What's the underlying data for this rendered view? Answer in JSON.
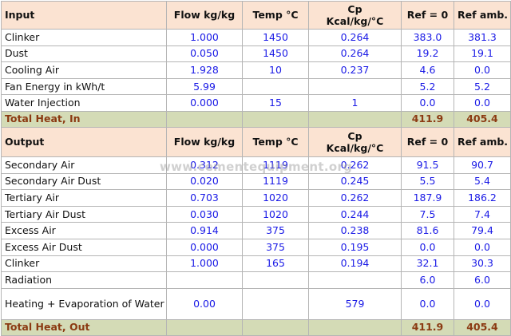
{
  "input_header": {
    "label": "Input",
    "flow": "Flow kg/kg",
    "temp": "Temp °C",
    "cp_line1": "Cp",
    "cp_line2": "Kcal/kg/°C",
    "ref0": "Ref = 0",
    "refamb": "Ref amb."
  },
  "input_rows": [
    {
      "label": "Clinker",
      "flow": "1.000",
      "temp": "1450",
      "cp": "0.264",
      "ref0": "383.0",
      "refamb": "381.3"
    },
    {
      "label": "Dust",
      "flow": "0.050",
      "temp": "1450",
      "cp": "0.264",
      "ref0": "19.2",
      "refamb": "19.1"
    },
    {
      "label": "Cooling Air",
      "flow": "1.928",
      "temp": "10",
      "cp": "0.237",
      "ref0": "4.6",
      "refamb": "0.0"
    },
    {
      "label": "Fan Energy in kWh/t",
      "flow": "5.99",
      "temp": "",
      "cp": "",
      "ref0": "5.2",
      "refamb": "5.2"
    },
    {
      "label": "Water Injection",
      "flow": "0.000",
      "temp": "15",
      "cp": "1",
      "ref0": "0.0",
      "refamb": "0.0"
    }
  ],
  "input_total": {
    "label": "Total Heat, In",
    "ref0": "411.9",
    "refamb": "405.4"
  },
  "output_header": {
    "label": "Output",
    "flow": "Flow kg/kg",
    "temp": "Temp °C",
    "cp_line1": "Cp",
    "cp_line2": "Kcal/kg/°C",
    "ref0": "Ref = 0",
    "refamb": "Ref amb."
  },
  "output_rows": [
    {
      "label": "Secondary Air",
      "flow": "0.312",
      "temp": "1119",
      "cp": "0.262",
      "ref0": "91.5",
      "refamb": "90.7"
    },
    {
      "label": "Secondary Air Dust",
      "flow": "0.020",
      "temp": "1119",
      "cp": "0.245",
      "ref0": "5.5",
      "refamb": "5.4"
    },
    {
      "label": "Tertiary Air",
      "flow": "0.703",
      "temp": "1020",
      "cp": "0.262",
      "ref0": "187.9",
      "refamb": "186.2"
    },
    {
      "label": "Tertiary Air Dust",
      "flow": "0.030",
      "temp": "1020",
      "cp": "0.244",
      "ref0": "7.5",
      "refamb": "7.4"
    },
    {
      "label": "Excess Air",
      "flow": "0.914",
      "temp": "375",
      "cp": "0.238",
      "ref0": "81.6",
      "refamb": "79.4"
    },
    {
      "label": "Excess Air Dust",
      "flow": "0.000",
      "temp": "375",
      "cp": "0.195",
      "ref0": "0.0",
      "refamb": "0.0"
    },
    {
      "label": "Clinker",
      "flow": "1.000",
      "temp": "165",
      "cp": "0.194",
      "ref0": "32.1",
      "refamb": "30.3"
    },
    {
      "label": "Radiation",
      "flow": "",
      "temp": "",
      "cp": "",
      "ref0": "6.0",
      "refamb": "6.0"
    },
    {
      "label": "Heating + Evaporation of Water",
      "flow": "0.00",
      "temp": "",
      "cp": "579",
      "ref0": "0.0",
      "refamb": "0.0"
    }
  ],
  "output_total": {
    "label": "Total Heat, Out",
    "ref0": "411.9",
    "refamb": "405.4"
  },
  "watermark": "www.cementequipment.org",
  "colors": {
    "header_bg": "#fbe3d2",
    "total_bg": "#d4dbb6",
    "value_text": "#1a1ae6",
    "total_text": "#8b3a12"
  }
}
